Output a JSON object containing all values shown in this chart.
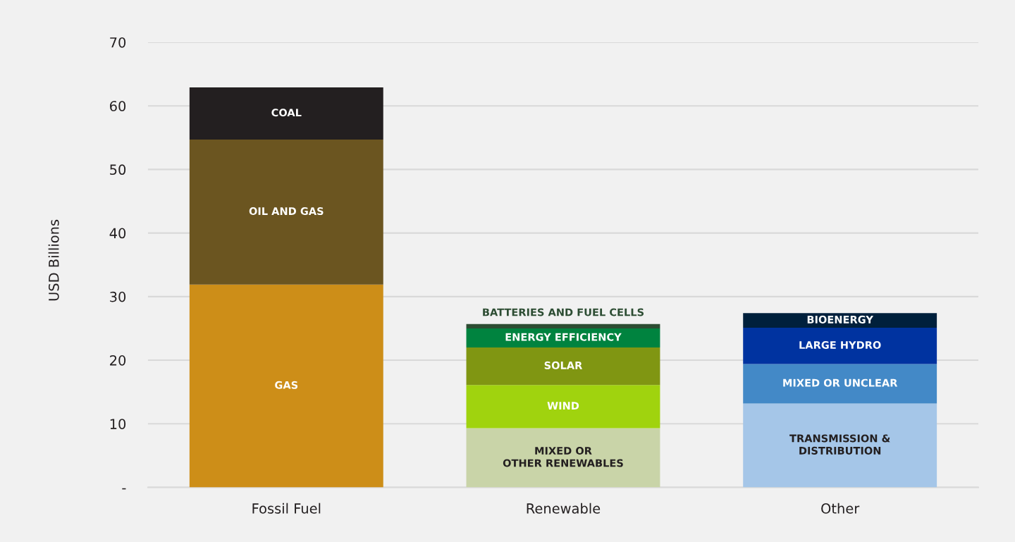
{
  "chart_data": {
    "type": "bar",
    "ylabel": "USD Billions",
    "categories": [
      "Fossil Fuel",
      "Renewable",
      "Other"
    ],
    "stacked": true,
    "series": [
      {
        "name": "GAS",
        "color": "#cd8e18",
        "values": [
          31.9,
          null,
          null
        ]
      },
      {
        "name": "OIL AND GAS",
        "color": "#6b5520",
        "values": [
          22.8,
          null,
          null
        ]
      },
      {
        "name": "COAL",
        "color": "#231f20",
        "values": [
          8.2,
          null,
          null
        ]
      },
      {
        "name": "MIXED OR\nOTHER RENEWABLES",
        "color": "#c9d4a8",
        "values": [
          null,
          9.3,
          null
        ]
      },
      {
        "name": "WIND",
        "color": "#a0d30e",
        "values": [
          null,
          6.8,
          null
        ]
      },
      {
        "name": "SOLAR",
        "color": "#809612",
        "values": [
          null,
          5.9,
          null
        ]
      },
      {
        "name": "ENERGY EFFICIENCY",
        "color": "#00833f",
        "values": [
          null,
          3.0,
          null
        ]
      },
      {
        "name": "BATTERIES AND FUEL CELLS",
        "color": "#2d4d33",
        "values": [
          null,
          0.7,
          null
        ]
      },
      {
        "name": "TRANSMISSION &\nDISTRIBUTION",
        "color": "#a5c6e8",
        "values": [
          null,
          null,
          13.2
        ]
      },
      {
        "name": "MIXED OR UNCLEAR",
        "color": "#4389c7",
        "values": [
          null,
          null,
          6.2
        ]
      },
      {
        "name": "LARGE HYDRO",
        "color": "#0033a0",
        "values": [
          null,
          null,
          5.7
        ]
      },
      {
        "name": "BIOENERGY",
        "color": "#00203c",
        "values": [
          null,
          null,
          2.3
        ]
      }
    ],
    "ylim": [
      0,
      70
    ],
    "yticks": [
      {
        "value": 0,
        "label": "-"
      },
      10,
      20,
      30,
      40,
      50,
      60,
      70
    ],
    "grid": "y"
  }
}
